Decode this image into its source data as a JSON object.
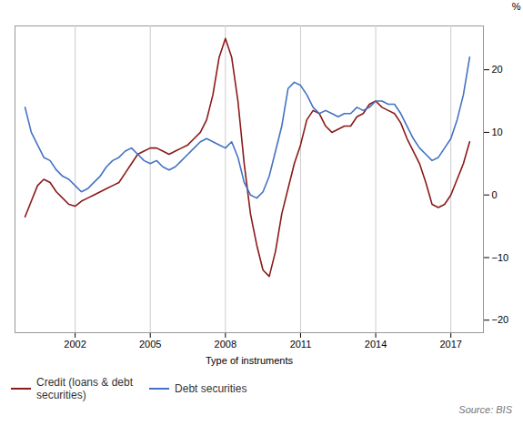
{
  "chart_data": {
    "type": "line",
    "xlabel": "Type of instruments",
    "ylabel": "%",
    "caption": "Source: BIS",
    "x": [
      2000.0,
      2000.25,
      2000.5,
      2000.75,
      2001.0,
      2001.25,
      2001.5,
      2001.75,
      2002.0,
      2002.25,
      2002.5,
      2002.75,
      2003.0,
      2003.25,
      2003.5,
      2003.75,
      2004.0,
      2004.25,
      2004.5,
      2004.75,
      2005.0,
      2005.25,
      2005.5,
      2005.75,
      2006.0,
      2006.25,
      2006.5,
      2006.75,
      2007.0,
      2007.25,
      2007.5,
      2007.75,
      2008.0,
      2008.25,
      2008.5,
      2008.75,
      2009.0,
      2009.25,
      2009.5,
      2009.75,
      2010.0,
      2010.25,
      2010.5,
      2010.75,
      2011.0,
      2011.25,
      2011.5,
      2011.75,
      2012.0,
      2012.25,
      2012.5,
      2012.75,
      2013.0,
      2013.25,
      2013.5,
      2013.75,
      2014.0,
      2014.25,
      2014.5,
      2014.75,
      2015.0,
      2015.25,
      2015.5,
      2015.75,
      2016.0,
      2016.25,
      2016.5,
      2016.75,
      2017.0,
      2017.25,
      2017.5,
      2017.75
    ],
    "series": [
      {
        "name": "Credit (loans & debt\nsecurities)",
        "color": "#8b1a1a",
        "values": [
          -3.5,
          -1.0,
          1.5,
          2.5,
          2.0,
          0.5,
          -0.5,
          -1.5,
          -1.8,
          -1.0,
          -0.5,
          0.0,
          0.5,
          1.0,
          1.5,
          2.0,
          3.5,
          5.0,
          6.5,
          7.0,
          7.5,
          7.5,
          7.0,
          6.5,
          7.0,
          7.5,
          8.0,
          9.0,
          10.0,
          12.0,
          16.0,
          22.0,
          25.0,
          22.0,
          15.0,
          5.0,
          -3.0,
          -8.0,
          -12.0,
          -13.0,
          -9.0,
          -3.0,
          1.0,
          5.0,
          8.0,
          12.0,
          13.5,
          13.0,
          11.0,
          10.0,
          10.5,
          11.0,
          11.0,
          12.5,
          13.0,
          14.5,
          15.0,
          14.0,
          13.5,
          13.0,
          11.5,
          9.0,
          7.0,
          5.0,
          2.0,
          -1.5,
          -2.0,
          -1.5,
          0.0,
          2.5,
          5.0,
          8.5
        ]
      },
      {
        "name": "Debt securities",
        "color": "#4472c4",
        "values": [
          14.0,
          10.0,
          8.0,
          6.0,
          5.5,
          4.0,
          3.0,
          2.5,
          1.5,
          0.5,
          1.0,
          2.0,
          3.0,
          4.5,
          5.5,
          6.0,
          7.0,
          7.5,
          6.5,
          5.5,
          5.0,
          5.5,
          4.5,
          4.0,
          4.5,
          5.5,
          6.5,
          7.5,
          8.5,
          9.0,
          8.5,
          8.0,
          7.5,
          8.5,
          6.0,
          2.0,
          0.0,
          -0.5,
          0.5,
          3.0,
          7.0,
          11.0,
          17.0,
          18.0,
          17.5,
          16.0,
          14.0,
          13.0,
          13.5,
          13.0,
          12.5,
          13.0,
          13.0,
          14.0,
          13.5,
          14.0,
          15.0,
          15.0,
          14.5,
          14.5,
          13.0,
          11.0,
          9.0,
          7.5,
          6.5,
          5.5,
          6.0,
          7.5,
          9.0,
          12.0,
          16.0,
          22.0
        ]
      }
    ],
    "xlim": [
      1999.6,
      2018.3
    ],
    "xticks": [
      2002,
      2005,
      2008,
      2011,
      2014,
      2017
    ],
    "ylim": [
      -22,
      27
    ],
    "yticks": [
      {
        "value": -20,
        "label": "−20"
      },
      {
        "value": -10,
        "label": "−10"
      },
      0,
      10,
      20
    ],
    "grid": "x",
    "legend": "bottom"
  }
}
